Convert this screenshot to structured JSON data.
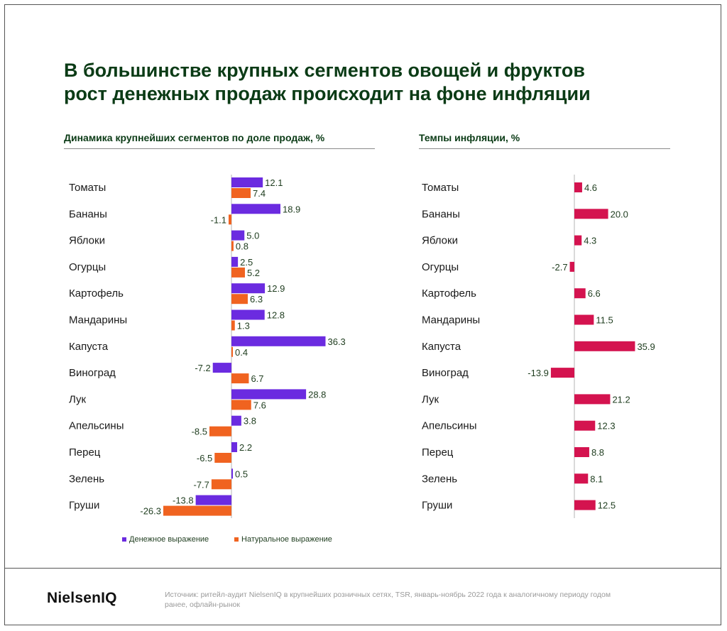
{
  "title": {
    "line1": "В большинстве крупных сегментов овощей и фруктов",
    "line2": "рост денежных продаж происходит на фоне инфляции"
  },
  "footer": {
    "logo": "NielsenIQ",
    "source": "Источник: ритейл-аудит NielsenIQ в крупнейших розничных сетях, TSR, январь-ноябрь 2022 года к аналогичному периоду годом ранее, офлайн-рынок"
  },
  "colors": {
    "money": "#6b2be0",
    "natural": "#f06320",
    "inflation": "#d4134f",
    "title": "#0b3b16"
  },
  "chart_data": [
    {
      "type": "bar",
      "orientation": "horizontal",
      "title": "Динамика крупнейших сегментов по доле продаж, %",
      "categories": [
        "Томаты",
        "Бананы",
        "Яблоки",
        "Огурцы",
        "Картофель",
        "Мандарины",
        "Капуста",
        "Виноград",
        "Лук",
        "Апельсины",
        "Перец",
        "Зелень",
        "Груши"
      ],
      "series": [
        {
          "name": "Денежное выражение",
          "color": "#6b2be0",
          "values": [
            12.1,
            18.9,
            5.0,
            2.5,
            12.9,
            12.8,
            36.3,
            -7.2,
            28.8,
            3.8,
            2.2,
            0.5,
            -13.8
          ]
        },
        {
          "name": "Натуральное выражение",
          "color": "#f06320",
          "values": [
            7.4,
            -1.1,
            0.8,
            5.2,
            6.3,
            1.3,
            0.4,
            6.7,
            7.6,
            -8.5,
            -6.5,
            -7.7,
            -26.3
          ]
        }
      ],
      "legend_position": "bottom",
      "grid": false
    },
    {
      "type": "bar",
      "orientation": "horizontal",
      "title": "Темпы инфляции, %",
      "categories": [
        "Томаты",
        "Бананы",
        "Яблоки",
        "Огурцы",
        "Картофель",
        "Мандарины",
        "Капуста",
        "Виноград",
        "Лук",
        "Апельсины",
        "Перец",
        "Зелень",
        "Груши"
      ],
      "series": [
        {
          "color": "#d4134f",
          "values": [
            4.6,
            20.0,
            4.3,
            -2.7,
            6.6,
            11.5,
            35.9,
            -13.9,
            21.2,
            12.3,
            8.8,
            8.1,
            12.5
          ]
        }
      ],
      "grid": false
    }
  ]
}
